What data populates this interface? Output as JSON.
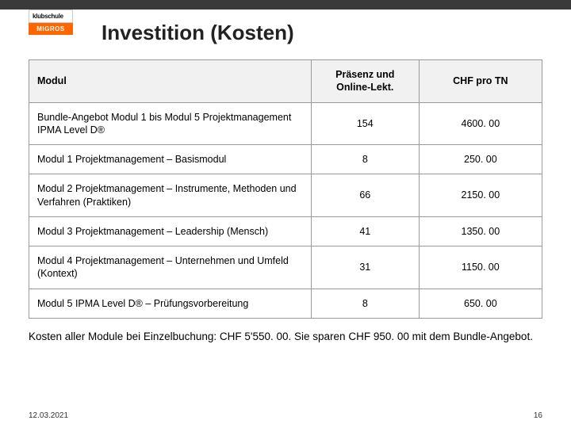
{
  "logo": {
    "top": "klubschule",
    "bottom": "MIGROS"
  },
  "title": "Investition (Kosten)",
  "table": {
    "headers": {
      "c1": "Modul",
      "c2": "Präsenz und Online-Lekt.",
      "c3": "CHF pro TN"
    },
    "rows": [
      {
        "modul": "Bundle-Angebot Modul 1 bis Modul 5 Projektmanagement IPMA Level D®",
        "lekt": "154",
        "chf": "4600. 00"
      },
      {
        "modul": "Modul 1 Projektmanagement – Basismodul",
        "lekt": "8",
        "chf": "250. 00"
      },
      {
        "modul": "Modul 2 Projektmanagement – Instrumente, Methoden und Verfahren (Praktiken)",
        "lekt": "66",
        "chf": "2150. 00"
      },
      {
        "modul": "Modul 3 Projektmanagement – Leadership (Mensch)",
        "lekt": "41",
        "chf": "1350. 00"
      },
      {
        "modul": "Modul 4 Projektmanagement – Unternehmen und Umfeld (Kontext)",
        "lekt": "31",
        "chf": "1150. 00"
      },
      {
        "modul": "Modul 5 IPMA Level D® – Prüfungsvorbereitung",
        "lekt": "8",
        "chf": "650. 00"
      }
    ]
  },
  "footnote": "Kosten aller Module bei Einzelbuchung: CHF 5'550. 00. Sie sparen CHF 950. 00 mit dem Bundle-Angebot.",
  "date": "12.03.2021",
  "page_num": "16",
  "colors": {
    "topbar": "#3a3a3a",
    "logo_accent": "#ff6600",
    "header_bg": "#f1f1f1",
    "border": "#999999"
  }
}
